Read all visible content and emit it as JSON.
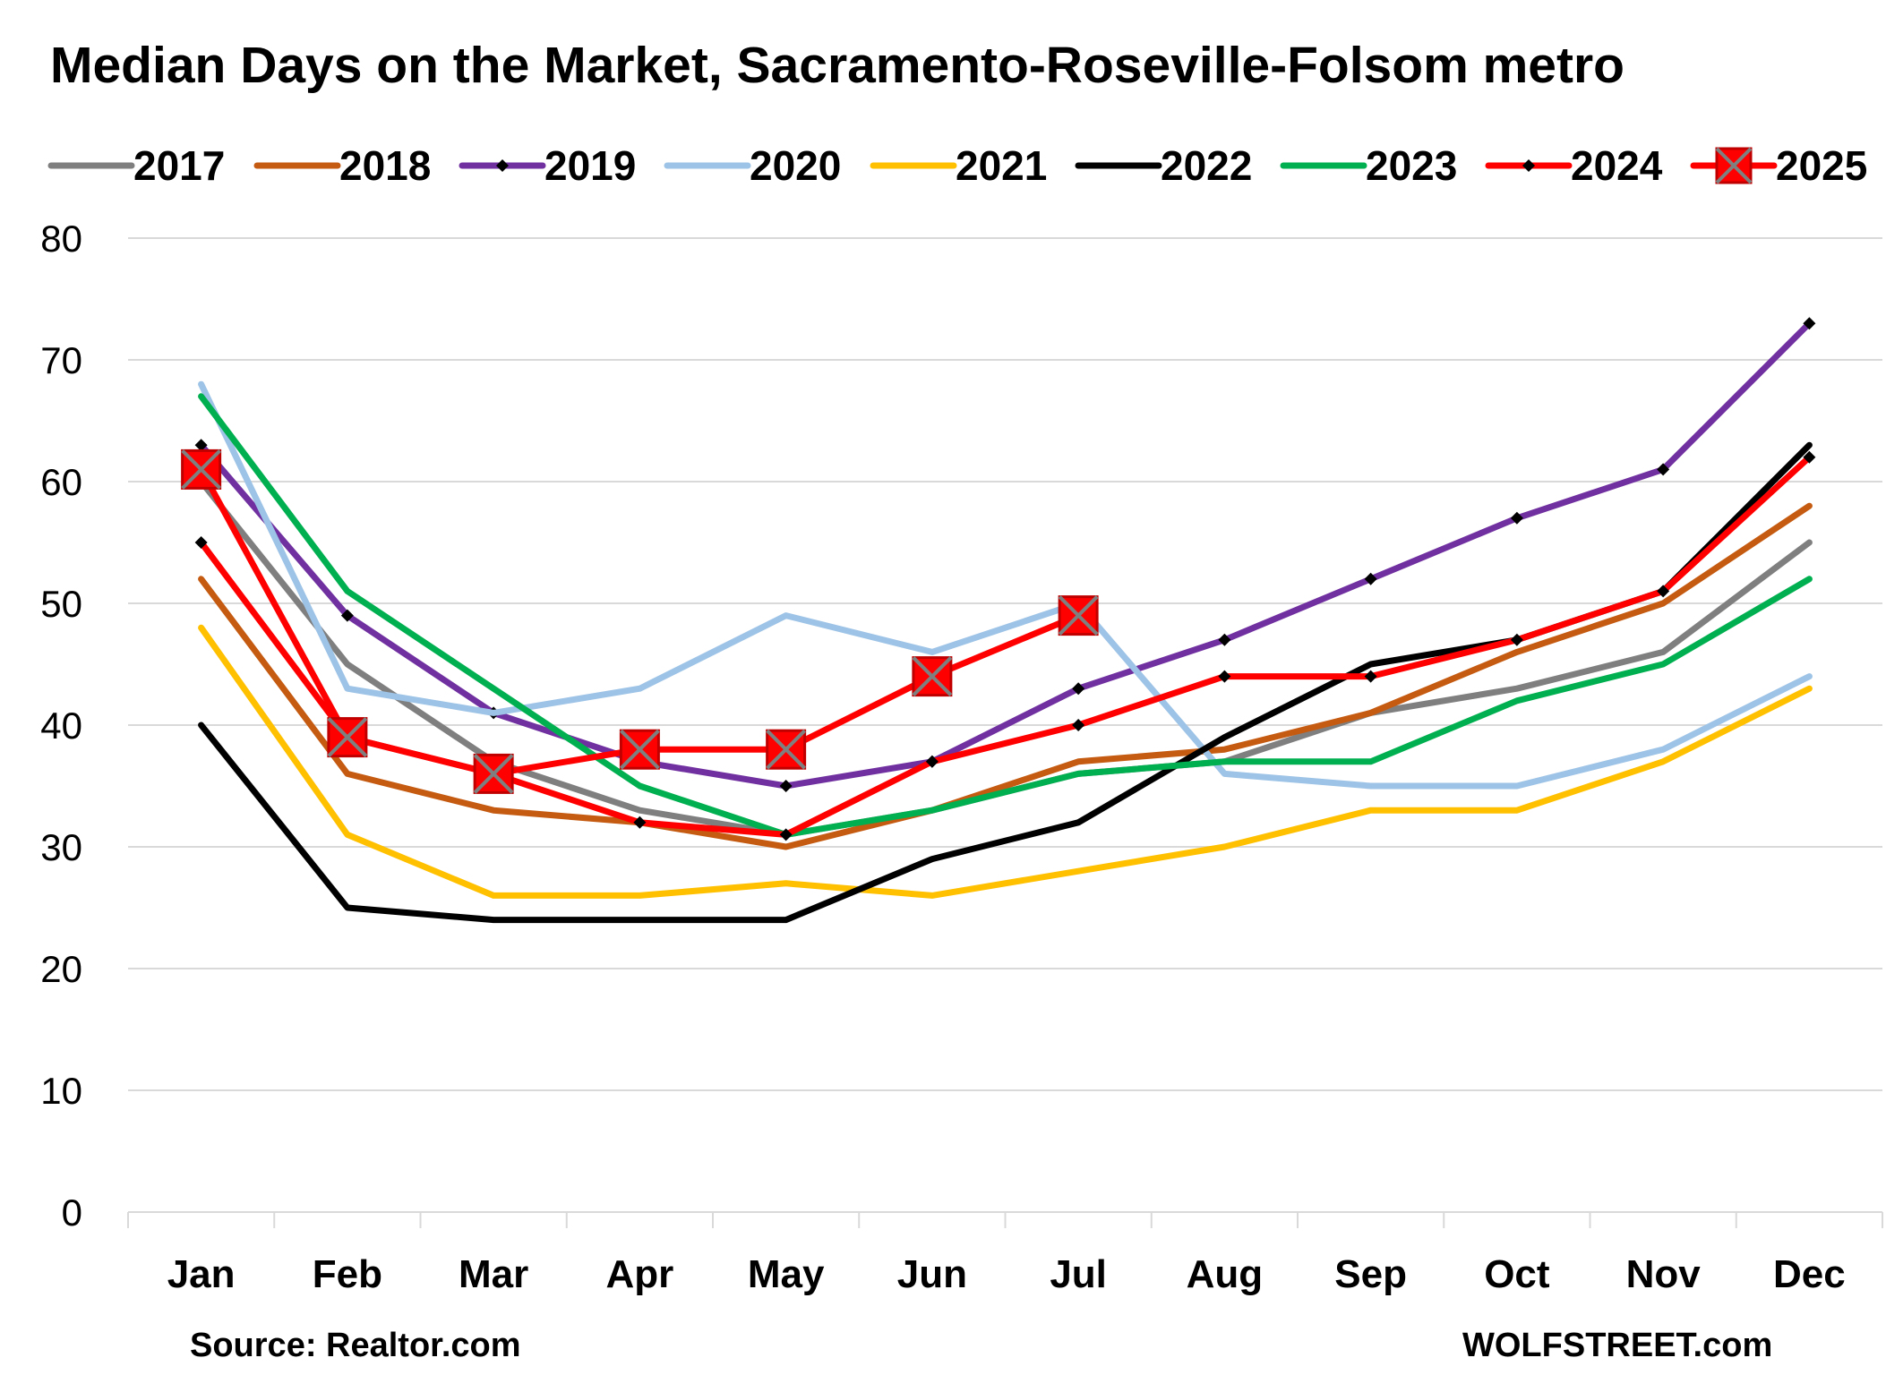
{
  "chart_data": {
    "type": "line",
    "title": "Median Days on the Market, Sacramento-Roseville-Folsom metro",
    "source": "Source: Realtor.com",
    "credit": "WOLFSTREET.com",
    "xlabel": "",
    "ylabel": "",
    "ylim": [
      0,
      80
    ],
    "yticks": [
      "0",
      "10",
      "20",
      "30",
      "40",
      "50",
      "60",
      "70",
      "80"
    ],
    "grid": "horizontal",
    "legend_position": "top",
    "categories": [
      "Jan",
      "Feb",
      "Mar",
      "Apr",
      "May",
      "Jun",
      "Jul",
      "Aug",
      "Sep",
      "Oct",
      "Nov",
      "Dec"
    ],
    "series": [
      {
        "name": "2017",
        "color": "#7f7f7f",
        "marker": "none",
        "values": [
          60,
          45,
          37,
          33,
          31,
          33,
          36,
          37,
          41,
          43,
          46,
          55
        ]
      },
      {
        "name": "2018",
        "color": "#c55a11",
        "marker": "none",
        "values": [
          52,
          36,
          33,
          32,
          30,
          33,
          37,
          38,
          41,
          46,
          50,
          58
        ]
      },
      {
        "name": "2019",
        "color": "#7030a0",
        "marker": "diamond",
        "values": [
          63,
          49,
          41,
          37,
          35,
          37,
          43,
          47,
          52,
          57,
          61,
          73
        ]
      },
      {
        "name": "2020",
        "color": "#9dc3e6",
        "marker": "none",
        "values": [
          68,
          43,
          41,
          43,
          49,
          46,
          50,
          36,
          35,
          35,
          38,
          44
        ]
      },
      {
        "name": "2021",
        "color": "#ffc000",
        "marker": "none",
        "values": [
          48,
          31,
          26,
          26,
          27,
          26,
          28,
          30,
          33,
          33,
          37,
          43
        ]
      },
      {
        "name": "2022",
        "color": "#000000",
        "marker": "none",
        "values": [
          40,
          25,
          24,
          24,
          24,
          29,
          32,
          39,
          45,
          47,
          51,
          63
        ]
      },
      {
        "name": "2023",
        "color": "#00b050",
        "marker": "none",
        "values": [
          67,
          51,
          43,
          35,
          31,
          33,
          36,
          37,
          37,
          42,
          45,
          52
        ]
      },
      {
        "name": "2024",
        "color": "#ff0000",
        "marker": "diamond",
        "values": [
          55,
          39,
          36,
          32,
          31,
          37,
          40,
          44,
          44,
          47,
          51,
          62
        ]
      },
      {
        "name": "2025",
        "color": "#ff0000",
        "marker": "square-x",
        "values": [
          61,
          39,
          36,
          38,
          38,
          44,
          49,
          null,
          null,
          null,
          null,
          null
        ]
      }
    ]
  }
}
